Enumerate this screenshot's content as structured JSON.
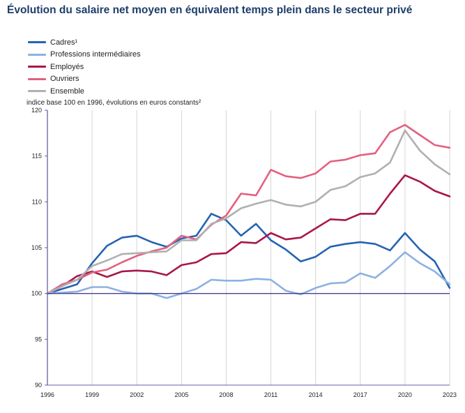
{
  "header": {
    "title": "Évolution du salaire net moyen en équivalent temps plein dans le secteur privé",
    "subtitle": "indice base 100 en 1996, évolutions en euros constants²"
  },
  "chart_data": {
    "type": "line",
    "title": "Évolution du salaire net moyen en équivalent temps plein dans le secteur privé",
    "ylabel": "indice base 100 en 1996, évolutions en euros constants²",
    "xlabel": "",
    "xlim": [
      1996,
      2023
    ],
    "ylim": [
      90,
      120
    ],
    "x_ticks": [
      "1996",
      "1999",
      "2002",
      "2005",
      "2008",
      "2011",
      "2014",
      "2017",
      "2020",
      "2023"
    ],
    "y_ticks": [
      "90",
      "95",
      "100",
      "105",
      "110",
      "115",
      "120"
    ],
    "reference_line": 100,
    "grid": "vertical",
    "legend_position": "top-left",
    "x": [
      1996,
      1997,
      1998,
      1999,
      2000,
      2001,
      2002,
      2003,
      2004,
      2005,
      2006,
      2007,
      2008,
      2009,
      2010,
      2011,
      2012,
      2013,
      2014,
      2015,
      2016,
      2017,
      2018,
      2019,
      2020,
      2021,
      2022,
      2023
    ],
    "series": [
      {
        "name": "Cadres¹",
        "color": "#2563b3",
        "values": [
          100,
          100.5,
          101,
          103.3,
          105.2,
          106.1,
          106.3,
          105.6,
          105.1,
          106.0,
          106.3,
          108.7,
          108.0,
          106.3,
          107.6,
          105.8,
          104.8,
          103.5,
          104.0,
          105.1,
          105.4,
          105.6,
          105.4,
          104.7,
          106.6,
          104.8,
          103.5,
          100.6
        ]
      },
      {
        "name": "Professions intermédiaires",
        "color": "#8db1e2",
        "values": [
          100,
          100.1,
          100.2,
          100.7,
          100.7,
          100.2,
          100.0,
          100.0,
          99.5,
          100.0,
          100.5,
          101.5,
          101.4,
          101.4,
          101.6,
          101.5,
          100.3,
          99.9,
          100.6,
          101.1,
          101.2,
          102.2,
          101.7,
          103.0,
          104.5,
          103.3,
          102.4,
          101.0
        ]
      },
      {
        "name": "Employés",
        "color": "#a8174a",
        "values": [
          100,
          100.8,
          101.9,
          102.4,
          101.8,
          102.4,
          102.5,
          102.4,
          102.0,
          103.1,
          103.4,
          104.3,
          104.4,
          105.6,
          105.5,
          106.6,
          105.9,
          106.1,
          107.1,
          108.1,
          108.0,
          108.7,
          108.7,
          110.9,
          112.9,
          112.2,
          111.2,
          110.6
        ]
      },
      {
        "name": "Ouvriers",
        "color": "#e3607f",
        "values": [
          100,
          101.0,
          101.5,
          102.3,
          102.6,
          103.4,
          104.1,
          104.6,
          105.0,
          106.3,
          105.9,
          107.5,
          108.5,
          110.9,
          110.7,
          113.5,
          112.8,
          112.6,
          113.1,
          114.4,
          114.6,
          115.1,
          115.3,
          117.6,
          118.4,
          117.3,
          116.2,
          115.9
        ]
      },
      {
        "name": "Ensemble",
        "color": "#b0b0b0",
        "values": [
          100,
          100.8,
          101.5,
          103.0,
          103.6,
          104.3,
          104.4,
          104.5,
          104.6,
          105.8,
          105.8,
          107.6,
          108.2,
          109.3,
          109.8,
          110.2,
          109.7,
          109.5,
          110.0,
          111.3,
          111.7,
          112.7,
          113.1,
          114.3,
          117.8,
          115.6,
          114.1,
          113.0
        ]
      }
    ]
  }
}
